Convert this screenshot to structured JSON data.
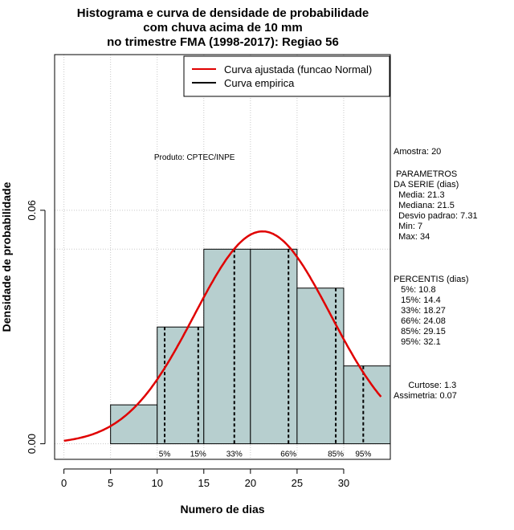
{
  "chart_data": {
    "type": "bar",
    "title": [
      "Histograma e curva de densidade de probabilidade",
      "com chuva acima de 10 mm",
      "no trimestre FMA (1998-2017): Regiao 56"
    ],
    "xlabel": "Numero de dias",
    "ylabel": "Densidade de probabilidade",
    "xlim": [
      -1,
      35
    ],
    "ylim": [
      -0.004,
      0.1
    ],
    "x_ticks": [
      0,
      5,
      10,
      15,
      20,
      25,
      30
    ],
    "y_ticks": [
      0.0,
      0.06
    ],
    "y_tick_labels": [
      "0.00",
      "0.06"
    ],
    "grid": true,
    "legend_position": "top-right",
    "legend": [
      {
        "label": "Curva ajustada (funcao Normal)",
        "color": "#e00000"
      },
      {
        "label": "Curva empirica",
        "color": "#000000"
      }
    ],
    "bins": [
      {
        "from": 5,
        "to": 10,
        "density": 0.01
      },
      {
        "from": 10,
        "to": 15,
        "density": 0.03
      },
      {
        "from": 15,
        "to": 20,
        "density": 0.05
      },
      {
        "from": 20,
        "to": 25,
        "density": 0.05
      },
      {
        "from": 25,
        "to": 30,
        "density": 0.04
      },
      {
        "from": 30,
        "to": 35,
        "density": 0.02
      }
    ],
    "bar_color": "#b7cfcf",
    "normal_fit": {
      "mean": 21.3,
      "sd": 7.31,
      "x_from": 0,
      "x_to": 34,
      "color": "#e00000"
    },
    "percentiles": [
      {
        "label": "5%",
        "value": 10.8
      },
      {
        "label": "15%",
        "value": 14.4
      },
      {
        "label": "33%",
        "value": 18.27
      },
      {
        "label": "66%",
        "value": 24.08
      },
      {
        "label": "85%",
        "value": 29.15
      },
      {
        "label": "95%",
        "value": 32.1
      }
    ],
    "annotation": "Produto: CPTEC/INPE",
    "annotation_pos": {
      "x": 14,
      "y": 0.073
    }
  },
  "stats": {
    "amostra": "Amostra: 20",
    "parametros": " PARAMETROS\nDA SERIE (dias)\n  Media: 21.3\n  Mediana: 21.5\n  Desvio padrao: 7.31\n  Min: 7\n  Max: 34",
    "percentis": "PERCENTIS (dias)\n   5%: 10.8\n   15%: 14.4\n   33%: 18.27\n   66%: 24.08\n   85%: 29.15\n   95%: 32.1",
    "forma": "      Curtose: 1.3\nAssimetria: 0.07"
  }
}
